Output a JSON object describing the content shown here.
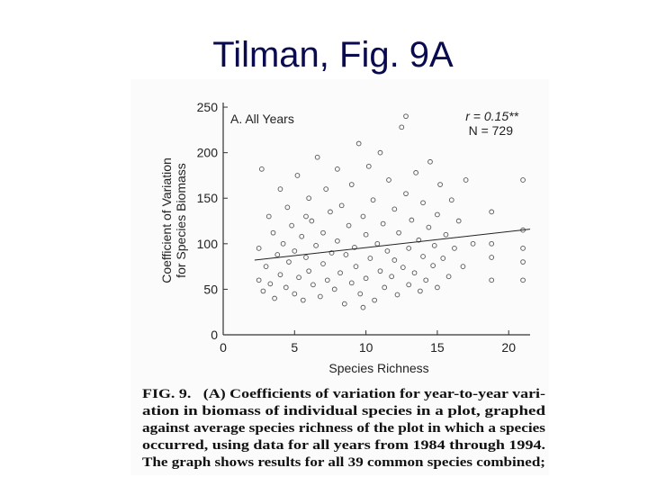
{
  "slide_title": "Tilman, Fig. 9A",
  "chart_data": {
    "type": "scatter",
    "xlabel": "Species Richness",
    "ylabel_lines": [
      "Coefficient of Variation",
      "for Species Biomass"
    ],
    "annotations": [
      "A. All Years",
      "r = 0.15**",
      "N = 729"
    ],
    "xlim": [
      0,
      21.5
    ],
    "ylim": [
      0,
      255
    ],
    "xticks": [
      0,
      5,
      10,
      15,
      20
    ],
    "yticks": [
      0,
      50,
      100,
      150,
      200,
      250
    ],
    "color": "#555555",
    "x": [
      2.5,
      2.5,
      2.7,
      2.8,
      3,
      3.2,
      3.3,
      3.5,
      3.6,
      3.8,
      4,
      4,
      4.2,
      4.4,
      4.5,
      4.6,
      4.8,
      5,
      5,
      5.2,
      5.3,
      5.5,
      5.6,
      5.8,
      6,
      6,
      6.2,
      6.3,
      6.5,
      6.6,
      6.8,
      7,
      7,
      7.2,
      7.3,
      7.5,
      7.6,
      7.8,
      8,
      8,
      8.2,
      8.3,
      8.5,
      8.6,
      8.8,
      9,
      9,
      9.2,
      9.3,
      9.5,
      9.6,
      9.8,
      10,
      10,
      10.2,
      10.3,
      10.5,
      10.6,
      10.8,
      11,
      11,
      11.2,
      11.3,
      11.5,
      11.6,
      11.8,
      12,
      12,
      12.2,
      12.3,
      12.5,
      12.6,
      12.8,
      13,
      13,
      13.2,
      13.4,
      13.5,
      13.7,
      13.8,
      14,
      14,
      14.2,
      14.4,
      14.5,
      14.7,
      14.8,
      15,
      15,
      15.2,
      15.4,
      15.6,
      15.8,
      16,
      16.2,
      16.5,
      17,
      17.5,
      18.8,
      18.8,
      18.8,
      18.8,
      21,
      21,
      21,
      21,
      21,
      16.8,
      5.8,
      12.8,
      9.8
    ],
    "values": [
      95,
      60,
      182,
      48,
      75,
      130,
      56,
      112,
      40,
      88,
      160,
      66,
      100,
      52,
      140,
      80,
      120,
      45,
      92,
      175,
      63,
      108,
      38,
      85,
      150,
      70,
      125,
      55,
      98,
      195,
      42,
      112,
      78,
      160,
      60,
      135,
      90,
      50,
      182,
      103,
      68,
      142,
      34,
      88,
      120,
      57,
      165,
      96,
      75,
      210,
      45,
      130,
      110,
      62,
      185,
      84,
      148,
      38,
      100,
      70,
      200,
      122,
      52,
      92,
      170,
      64,
      138,
      82,
      44,
      112,
      228,
      74,
      155,
      95,
      55,
      126,
      68,
      178,
      104,
      48,
      145,
      86,
      60,
      118,
      190,
      76,
      98,
      132,
      52,
      165,
      84,
      110,
      64,
      148,
      95,
      125,
      170,
      100,
      135,
      100,
      60,
      85,
      170,
      115,
      95,
      60,
      80,
      75,
      130,
      240,
      30
    ],
    "trend_line": {
      "x": [
        2.2,
        21.5
      ],
      "y": [
        82,
        116
      ]
    }
  },
  "caption": {
    "lines": [
      "FIG. 9.   (A) Coefficients of variation for year-to-year vari-",
      "ation in biomass of individual species in a plot, graphed",
      "against average species richness of the plot in which a species",
      "occurred, using data for all years from 1984 through 1994.",
      "The graph shows results for all 39 common species combined;"
    ]
  }
}
